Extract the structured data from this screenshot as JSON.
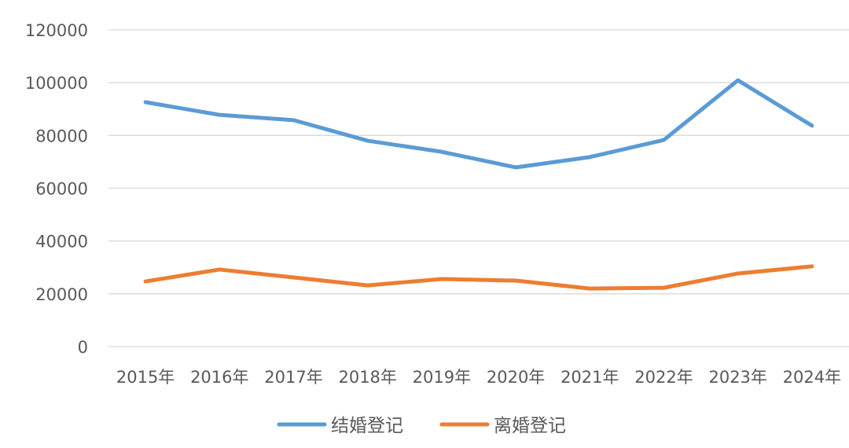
{
  "chart_data": {
    "type": "line",
    "title": "",
    "xlabel": "",
    "ylabel": "",
    "categories": [
      "2015年",
      "2016年",
      "2017年",
      "2018年",
      "2019年",
      "2020年",
      "2021年",
      "2022年",
      "2023年",
      "2024年"
    ],
    "ylim": [
      0,
      120000
    ],
    "yticks": [
      0,
      20000,
      40000,
      60000,
      80000,
      100000,
      120000
    ],
    "grid": true,
    "legend_position": "bottom",
    "series": [
      {
        "name": "结婚登记",
        "color": "#5B9BD5",
        "values": [
          92600,
          87800,
          85800,
          78000,
          73800,
          67900,
          71800,
          78300,
          100900,
          83700
        ]
      },
      {
        "name": "离婚登记",
        "color": "#ED7D31",
        "values": [
          24700,
          29200,
          26200,
          23200,
          25600,
          25000,
          22000,
          22300,
          27700,
          30400
        ]
      }
    ]
  }
}
